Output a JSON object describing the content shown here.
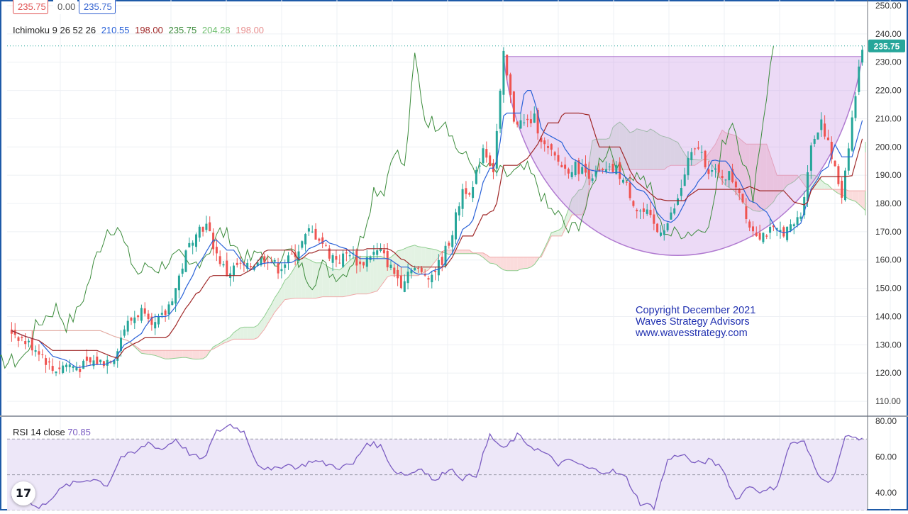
{
  "header": {
    "value_boxes": [
      {
        "text": "235.75",
        "color": "#e05050"
      },
      {
        "text": "0.00",
        "color": "#555555"
      },
      {
        "text": "235.75",
        "color": "#3060d0"
      }
    ]
  },
  "ichimoku_legend": {
    "name": "Ichimoku 9 26 52 26",
    "values": [
      {
        "text": "210.55",
        "color": "#2a62d8"
      },
      {
        "text": "198.00",
        "color": "#a02828"
      },
      {
        "text": "235.75",
        "color": "#3c8c3c"
      },
      {
        "text": "204.28",
        "color": "#6fbf6f"
      },
      {
        "text": "198.00",
        "color": "#e89090"
      }
    ]
  },
  "last_price_label": "235.75",
  "rsi_legend": {
    "name": "RSI 14 close",
    "value": "70.85",
    "value_color": "#7b5cc2"
  },
  "copyright": {
    "line1": "Copyright December 2021",
    "line2": "Waves Strategy Advisors",
    "line3": "www.wavesstrategy.com"
  },
  "logo_text": "17",
  "colors": {
    "up": "#26a69a",
    "down": "#ef5350",
    "tenkan": "#2a62d8",
    "kijun": "#a02828",
    "chikou": "#3c8c3c",
    "cloud_bull": "#e3f2e3",
    "cloud_bear": "#fbdcdc",
    "span_a": "#8fce8f",
    "span_b": "#f0a8a8",
    "cup": "#b07ad0",
    "rsi": "#7b5cc2",
    "rsi_band": "#ede7f8",
    "axis_text": "#333333",
    "price_tag": "#26a69a"
  },
  "chart_data": [
    {
      "type": "candlestick",
      "title": "",
      "ylim": [
        105,
        252
      ],
      "yticks": [
        110,
        120,
        130,
        140,
        150,
        160,
        170,
        180,
        190,
        200,
        210,
        220,
        230,
        240,
        250
      ],
      "ytick_labels": [
        "110.00",
        "120.00",
        "130.00",
        "140.00",
        "150.00",
        "160.00",
        "170.00",
        "180.00",
        "190.00",
        "200.00",
        "210.00",
        "220.00",
        "230.00",
        "240.00",
        "250.00"
      ],
      "close_series": [
        [
          0,
          135
        ],
        [
          4,
          131
        ],
        [
          8,
          128
        ],
        [
          12,
          121
        ],
        [
          16,
          123
        ],
        [
          20,
          122
        ],
        [
          24,
          124
        ],
        [
          27,
          124
        ],
        [
          30,
          126
        ],
        [
          33,
          136
        ],
        [
          36,
          140
        ],
        [
          39,
          143
        ],
        [
          42,
          137
        ],
        [
          45,
          141
        ],
        [
          48,
          150
        ],
        [
          51,
          162
        ],
        [
          54,
          171
        ],
        [
          57,
          172
        ],
        [
          60,
          162
        ],
        [
          63,
          155
        ],
        [
          66,
          158
        ],
        [
          69,
          157
        ],
        [
          72,
          160
        ],
        [
          75,
          161
        ],
        [
          78,
          157
        ],
        [
          81,
          160
        ],
        [
          84,
          164
        ],
        [
          87,
          170
        ],
        [
          90,
          168
        ],
        [
          93,
          162
        ],
        [
          96,
          160
        ],
        [
          99,
          163
        ],
        [
          102,
          158
        ],
        [
          105,
          162
        ],
        [
          108,
          163
        ],
        [
          111,
          157
        ],
        [
          114,
          152
        ],
        [
          117,
          158
        ],
        [
          120,
          155
        ],
        [
          123,
          155
        ],
        [
          126,
          160
        ],
        [
          129,
          170
        ],
        [
          132,
          185
        ],
        [
          135,
          185
        ],
        [
          138,
          200
        ],
        [
          141,
          192
        ],
        [
          144,
          232
        ],
        [
          147,
          210
        ],
        [
          150,
          208
        ],
        [
          153,
          210
        ],
        [
          156,
          200
        ],
        [
          159,
          196
        ],
        [
          162,
          192
        ],
        [
          165,
          193
        ],
        [
          168,
          191
        ],
        [
          171,
          190
        ],
        [
          174,
          191
        ],
        [
          177,
          192
        ],
        [
          180,
          186
        ],
        [
          183,
          178
        ],
        [
          186,
          176
        ],
        [
          189,
          170
        ],
        [
          192,
          173
        ],
        [
          195,
          181
        ],
        [
          198,
          195
        ],
        [
          201,
          200
        ],
        [
          204,
          192
        ],
        [
          207,
          190
        ],
        [
          210,
          190
        ],
        [
          213,
          185
        ],
        [
          216,
          172
        ],
        [
          219,
          169
        ],
        [
          222,
          170
        ],
        [
          225,
          170
        ],
        [
          228,
          171
        ],
        [
          231,
          176
        ],
        [
          234,
          200
        ],
        [
          237,
          210
        ],
        [
          240,
          196
        ],
        [
          243,
          183
        ],
        [
          246,
          210
        ],
        [
          249,
          235.75
        ]
      ],
      "candles": {
        "start_index": 0,
        "end_index": 249,
        "open_close_pairs_sampled": [
          [
            0,
            136,
            133
          ],
          [
            4,
            132,
            129
          ],
          [
            8,
            127,
            131
          ],
          [
            12,
            122,
            119
          ],
          [
            16,
            121,
            124
          ],
          [
            20,
            124,
            121
          ],
          [
            24,
            122,
            125
          ],
          [
            30,
            125,
            128
          ],
          [
            33,
            128,
            136
          ],
          [
            36,
            136,
            141
          ],
          [
            39,
            141,
            144
          ],
          [
            42,
            144,
            137
          ],
          [
            45,
            137,
            142
          ],
          [
            48,
            142,
            150
          ],
          [
            51,
            150,
            163
          ],
          [
            54,
            163,
            172
          ],
          [
            57,
            172,
            166
          ],
          [
            60,
            166,
            158
          ],
          [
            63,
            158,
            154
          ],
          [
            66,
            154,
            159
          ],
          [
            69,
            159,
            156
          ],
          [
            72,
            156,
            161
          ],
          [
            75,
            161,
            157
          ],
          [
            78,
            157,
            161
          ],
          [
            81,
            161,
            165
          ],
          [
            84,
            165,
            171
          ],
          [
            87,
            171,
            167
          ],
          [
            90,
            167,
            161
          ],
          [
            93,
            161,
            160
          ],
          [
            96,
            160,
            164
          ],
          [
            99,
            164,
            157
          ],
          [
            102,
            157,
            162
          ],
          [
            105,
            162,
            163
          ],
          [
            108,
            163,
            156
          ],
          [
            111,
            156,
            151
          ],
          [
            114,
            151,
            158
          ],
          [
            117,
            158,
            154
          ],
          [
            120,
            154,
            156
          ],
          [
            123,
            156,
            162
          ],
          [
            126,
            162,
            170
          ],
          [
            129,
            170,
            186
          ],
          [
            132,
            186,
            183
          ],
          [
            135,
            183,
            200
          ],
          [
            138,
            200,
            191
          ],
          [
            141,
            191,
            232
          ],
          [
            144,
            232,
            212
          ],
          [
            147,
            212,
            207
          ],
          [
            150,
            207,
            210
          ],
          [
            153,
            210,
            199
          ],
          [
            156,
            199,
            196
          ],
          [
            159,
            196,
            193
          ],
          [
            162,
            193,
            192
          ],
          [
            165,
            192,
            190
          ],
          [
            168,
            190,
            191
          ],
          [
            171,
            191,
            192
          ],
          [
            174,
            192,
            186
          ],
          [
            177,
            186,
            179
          ],
          [
            180,
            179,
            176
          ],
          [
            183,
            176,
            169
          ],
          [
            186,
            169,
            172
          ],
          [
            189,
            172,
            182
          ],
          [
            192,
            182,
            195
          ],
          [
            195,
            195,
            200
          ],
          [
            198,
            200,
            191
          ],
          [
            201,
            191,
            190
          ],
          [
            204,
            190,
            189
          ],
          [
            207,
            189,
            184
          ],
          [
            210,
            184,
            172
          ],
          [
            213,
            172,
            168
          ],
          [
            216,
            168,
            170
          ],
          [
            219,
            170,
            170
          ],
          [
            222,
            170,
            172
          ],
          [
            225,
            172,
            176
          ],
          [
            228,
            176,
            200
          ],
          [
            231,
            200,
            210
          ],
          [
            234,
            210,
            197
          ],
          [
            237,
            197,
            183
          ],
          [
            240,
            183,
            182
          ],
          [
            243,
            182,
            215
          ],
          [
            246,
            215,
            225
          ],
          [
            249,
            225,
            235.75
          ]
        ]
      },
      "ichimoku": {
        "tenkan_last": 210.55,
        "kijun_last": 198.0,
        "chikou_last": 235.75,
        "span_a_last": 204.28,
        "span_b_last": 198.0
      },
      "annotation": "cup shape (rounding bottom) from ~232 down to ~162 and back up to ~232"
    },
    {
      "type": "line",
      "title": "RSI 14 close",
      "ylim": [
        30,
        82
      ],
      "yticks": [
        40,
        60,
        80
      ],
      "ytick_labels": [
        "40.00",
        "60.00",
        "80.00"
      ],
      "bands": [
        30,
        50,
        70
      ],
      "last_value": 70.85,
      "values_sampled": [
        [
          0,
          38
        ],
        [
          4,
          36
        ],
        [
          8,
          31
        ],
        [
          12,
          38
        ],
        [
          16,
          44
        ],
        [
          20,
          46
        ],
        [
          24,
          48
        ],
        [
          28,
          44
        ],
        [
          32,
          60
        ],
        [
          36,
          62
        ],
        [
          40,
          68
        ],
        [
          44,
          64
        ],
        [
          48,
          70
        ],
        [
          52,
          62
        ],
        [
          56,
          58
        ],
        [
          60,
          74
        ],
        [
          64,
          78
        ],
        [
          68,
          74
        ],
        [
          72,
          56
        ],
        [
          76,
          52
        ],
        [
          80,
          56
        ],
        [
          84,
          54
        ],
        [
          88,
          58
        ],
        [
          92,
          56
        ],
        [
          96,
          54
        ],
        [
          100,
          56
        ],
        [
          104,
          68
        ],
        [
          108,
          66
        ],
        [
          112,
          52
        ],
        [
          116,
          50
        ],
        [
          120,
          54
        ],
        [
          124,
          46
        ],
        [
          128,
          54
        ],
        [
          132,
          48
        ],
        [
          136,
          50
        ],
        [
          140,
          72
        ],
        [
          144,
          64
        ],
        [
          148,
          72
        ],
        [
          152,
          66
        ],
        [
          156,
          62
        ],
        [
          160,
          56
        ],
        [
          164,
          58
        ],
        [
          168,
          54
        ],
        [
          172,
          52
        ],
        [
          176,
          52
        ],
        [
          180,
          48
        ],
        [
          184,
          34
        ],
        [
          188,
          32
        ],
        [
          192,
          58
        ],
        [
          196,
          62
        ],
        [
          200,
          56
        ],
        [
          204,
          58
        ],
        [
          208,
          54
        ],
        [
          212,
          36
        ],
        [
          216,
          44
        ],
        [
          220,
          40
        ],
        [
          224,
          44
        ],
        [
          228,
          68
        ],
        [
          232,
          68
        ],
        [
          236,
          50
        ],
        [
          240,
          46
        ],
        [
          244,
          70.85
        ]
      ]
    }
  ]
}
